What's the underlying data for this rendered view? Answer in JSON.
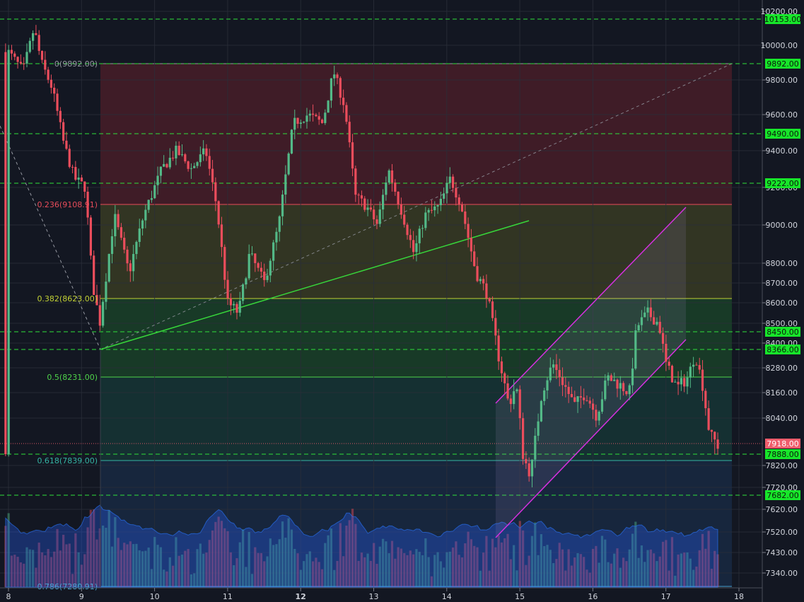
{
  "colors": {
    "background": "#131722",
    "grid": "#2a2e39",
    "up": "#53b987",
    "down": "#eb4d5c",
    "level_line": "#2fe03b",
    "level_label_bg": "#17e62a",
    "price_label_bg": "#f05d6c",
    "channel": "#d630e0",
    "trendline": "#37d63a"
  },
  "chart_data": {
    "type": "candlestick",
    "x_ticks": [
      {
        "label": "8",
        "x": 8,
        "bold": false
      },
      {
        "label": "9",
        "x": 9,
        "bold": false
      },
      {
        "label": "10",
        "x": 10,
        "bold": false
      },
      {
        "label": "11",
        "x": 11,
        "bold": false
      },
      {
        "label": "12",
        "x": 12,
        "bold": true
      },
      {
        "label": "13",
        "x": 13,
        "bold": false
      },
      {
        "label": "14",
        "x": 14,
        "bold": false
      },
      {
        "label": "15",
        "x": 15,
        "bold": false
      },
      {
        "label": "16",
        "x": 16,
        "bold": false
      },
      {
        "label": "17",
        "x": 17,
        "bold": false
      },
      {
        "label": "18",
        "x": 18,
        "bold": false
      }
    ],
    "y_ticks": [
      "10200.00",
      "10000.00",
      "9800.00",
      "9600.00",
      "9400.00",
      "9200.00",
      "9000.00",
      "8800.00",
      "8700.00",
      "8600.00",
      "8500.00",
      "8400.00",
      "8280.00",
      "8160.00",
      "8040.00",
      "7820.00",
      "7720.00",
      "7620.00",
      "7520.00",
      "7430.00",
      "7340.00"
    ],
    "horizontal_levels": [
      {
        "value": 10153,
        "label": "10153.00"
      },
      {
        "value": 9892,
        "label": "9892.00"
      },
      {
        "value": 9490,
        "label": "9490.00"
      },
      {
        "value": 9222,
        "label": "9222.00"
      },
      {
        "value": 8450,
        "label": "8450.00"
      },
      {
        "value": 8366,
        "label": "8366.00"
      },
      {
        "value": 7888,
        "label": "7888.00"
      },
      {
        "value": 7682,
        "label": "7682.00"
      }
    ],
    "current_price": {
      "value": 7918,
      "label": "7918.00"
    },
    "fibonacci": [
      {
        "ratio": 0,
        "value": 9892,
        "label": "0(9892.00)",
        "color": "#9598a1",
        "fill": "rgba(224,50,60,0.22)"
      },
      {
        "ratio": 0.236,
        "value": 9108.91,
        "label": "0.236(9108.91)",
        "color": "#e84c5a",
        "fill": "rgba(150,150,40,0.24)"
      },
      {
        "ratio": 0.382,
        "value": 8623,
        "label": "0.382(8623.00)",
        "color": "#c2d135",
        "fill": "rgba(40,170,60,0.24)"
      },
      {
        "ratio": 0.5,
        "value": 8231,
        "label": "0.5(8231.00)",
        "color": "#4fd34a",
        "fill": "rgba(30,140,110,0.22)"
      },
      {
        "ratio": 0.618,
        "value": 7839,
        "label": "0.618(7839.00)",
        "color": "#35b4a4",
        "fill": "rgba(40,100,170,0.2)"
      },
      {
        "ratio": 0.786,
        "value": 7280.91,
        "label": "0.786(7280.91)",
        "color": "#4aa4d6",
        "fill": "none"
      }
    ]
  }
}
